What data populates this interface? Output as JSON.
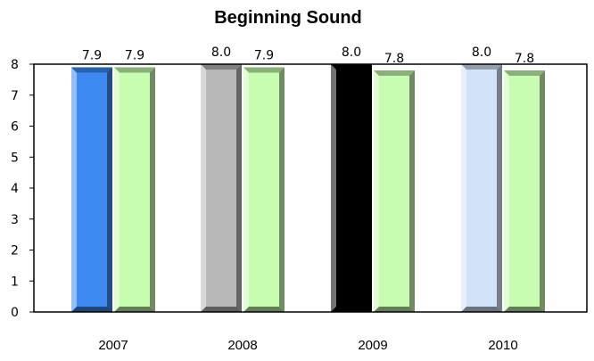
{
  "chart_data": {
    "type": "bar",
    "title": "Beginning Sound",
    "xlabel": "",
    "ylabel": "",
    "categories": [
      "2007",
      "2008",
      "2009",
      "2010"
    ],
    "ylim": [
      0,
      8
    ],
    "yticks": [
      0,
      1,
      2,
      3,
      4,
      5,
      6,
      7,
      8
    ],
    "grid": false,
    "legend": "none",
    "series": [
      {
        "values": [
          7.9,
          8.0,
          8.0,
          8.0
        ],
        "value_labels": [
          "7.9",
          "8.0",
          "8.0",
          "8.0"
        ],
        "colors": [
          "#3d8bf2",
          "#b8b8b8",
          "#000000",
          "#d2e3f9"
        ]
      },
      {
        "values": [
          7.9,
          7.9,
          7.8,
          7.8
        ],
        "value_labels": [
          "7.9",
          "7.9",
          "7.8",
          "7.8"
        ],
        "colors": [
          "#c8fcb0",
          "#c8fcb0",
          "#c8fcb0",
          "#c8fcb0"
        ]
      }
    ]
  }
}
